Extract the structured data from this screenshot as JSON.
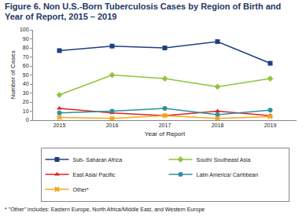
{
  "chart_data": {
    "type": "line",
    "title": "Figure 6. Non U.S.-Born Tuberculosis Cases by Region of Birth and Year of Report, 2015 – 2019",
    "x_label": "Year of Report",
    "y_label": "Number of Cases",
    "categories": [
      "2015",
      "2016",
      "2017",
      "2018",
      "2019"
    ],
    "series": [
      {
        "name": "Sub- Saharan Africa",
        "color": "#1f3f7f",
        "marker": "square",
        "values": [
          77,
          82,
          80,
          87,
          63
        ]
      },
      {
        "name": "South/ Southeast Asia",
        "color": "#8fc43f",
        "marker": "diamond",
        "values": [
          28,
          50,
          46,
          37,
          46
        ]
      },
      {
        "name": "East Asia/ Pacific",
        "color": "#e02020",
        "marker": "triangle-up",
        "values": [
          13,
          8,
          5,
          10,
          5
        ]
      },
      {
        "name": "Latin America/ Caribbean",
        "color": "#2e8fa0",
        "marker": "circle",
        "values": [
          8,
          10,
          13,
          6,
          11
        ]
      },
      {
        "name": "Other*",
        "color": "#f5a623",
        "marker": "x",
        "values": [
          3,
          2,
          5,
          2,
          4
        ]
      }
    ],
    "ylim": [
      0,
      100
    ],
    "yticks": [
      0,
      10,
      20,
      30,
      40,
      50,
      60,
      70,
      80,
      90,
      100
    ],
    "grid": false,
    "legend": "bottom",
    "annotations": [
      "* \"Other\" includes: Eastern Europe, North Africa/Middle East, and Western Europe"
    ]
  }
}
